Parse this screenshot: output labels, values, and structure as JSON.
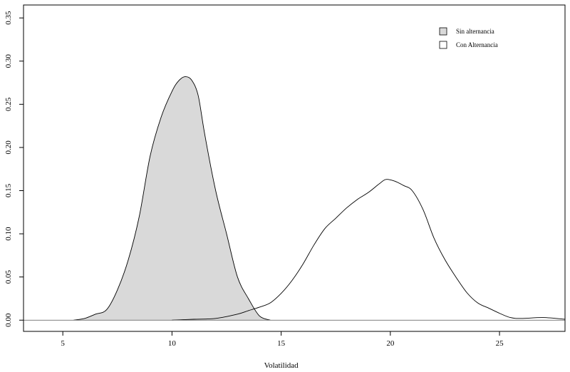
{
  "chart_data": {
    "type": "area",
    "xlabel": "Volatilidad",
    "ylabel": "",
    "title": "",
    "xlim": [
      3.2,
      28
    ],
    "ylim": [
      -0.013,
      0.365
    ],
    "x_ticks": [
      5,
      10,
      15,
      20,
      25
    ],
    "x_tick_labels": [
      "5",
      "10",
      "15",
      "20",
      "25"
    ],
    "y_ticks": [
      0.0,
      0.05,
      0.1,
      0.15,
      0.2,
      0.25,
      0.3,
      0.35
    ],
    "y_tick_labels": [
      "0.00",
      "0.05",
      "0.10",
      "0.15",
      "0.20",
      "0.25",
      "0.30",
      "0.35"
    ],
    "grid": false,
    "legend_position": "top-right",
    "series": [
      {
        "name": "Sin alternancia",
        "fill": "#d9d9d9",
        "stroke": "#000000",
        "x": [
          5.5,
          6.0,
          6.5,
          7.0,
          7.5,
          8.0,
          8.5,
          9.0,
          9.5,
          10.0,
          10.3,
          10.6,
          10.9,
          11.2,
          11.5,
          12.0,
          12.5,
          13.0,
          13.5,
          14.0,
          14.5
        ],
        "y": [
          0.0,
          0.002,
          0.007,
          0.012,
          0.035,
          0.07,
          0.12,
          0.19,
          0.235,
          0.265,
          0.277,
          0.282,
          0.278,
          0.26,
          0.215,
          0.15,
          0.1,
          0.05,
          0.025,
          0.005,
          0.0
        ]
      },
      {
        "name": "Con Alternancia",
        "fill": "#ffffff",
        "stroke": "#000000",
        "x": [
          10.0,
          11.0,
          12.0,
          13.0,
          13.5,
          14.0,
          14.5,
          15.0,
          15.5,
          16.0,
          16.5,
          17.0,
          17.5,
          18.0,
          18.5,
          19.0,
          19.5,
          19.8,
          20.2,
          20.6,
          21.0,
          21.5,
          22.0,
          22.5,
          23.0,
          23.5,
          24.0,
          24.5,
          25.0,
          25.5,
          26.0,
          27.0,
          28.0
        ],
        "y": [
          0.0,
          0.001,
          0.002,
          0.007,
          0.011,
          0.015,
          0.02,
          0.031,
          0.046,
          0.065,
          0.087,
          0.106,
          0.118,
          0.13,
          0.14,
          0.148,
          0.158,
          0.163,
          0.161,
          0.156,
          0.15,
          0.128,
          0.095,
          0.07,
          0.05,
          0.032,
          0.02,
          0.014,
          0.008,
          0.003,
          0.002,
          0.003,
          0.001
        ]
      }
    ]
  }
}
